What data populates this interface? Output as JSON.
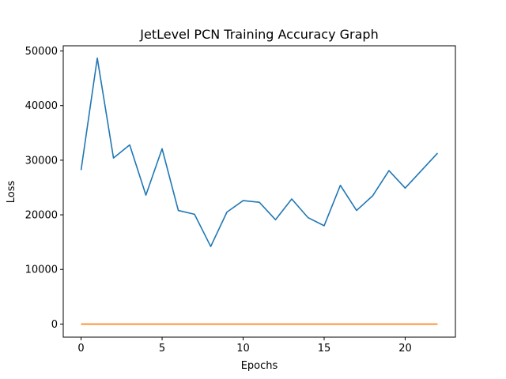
{
  "chart_data": {
    "type": "line",
    "title": "JetLevel PCN Training Accuracy Graph",
    "xlabel": "Epochs",
    "ylabel": "Loss",
    "xlim": [
      -1.1,
      23.1
    ],
    "ylim": [
      -2400,
      50950
    ],
    "xticks": [
      0,
      5,
      10,
      15,
      20
    ],
    "yticks": [
      0,
      10000,
      20000,
      30000,
      40000,
      50000
    ],
    "grid": false,
    "x": [
      0,
      1,
      2,
      3,
      4,
      5,
      6,
      7,
      8,
      9,
      10,
      11,
      12,
      13,
      14,
      15,
      16,
      17,
      18,
      19,
      20,
      21,
      22
    ],
    "series": [
      {
        "color": "#1f77b4",
        "values": [
          28200,
          48700,
          30400,
          32800,
          23600,
          32100,
          20800,
          20100,
          14200,
          20500,
          22600,
          22300,
          19100,
          22900,
          19500,
          18000,
          25400,
          20800,
          23500,
          28100,
          24900,
          28100,
          31300
        ]
      },
      {
        "color": "#ff7f0e",
        "values": [
          0,
          0,
          0,
          0,
          0,
          0,
          0,
          0,
          0,
          0,
          0,
          0,
          0,
          0,
          0,
          0,
          0,
          0,
          0,
          0,
          0,
          0,
          0
        ]
      }
    ]
  }
}
